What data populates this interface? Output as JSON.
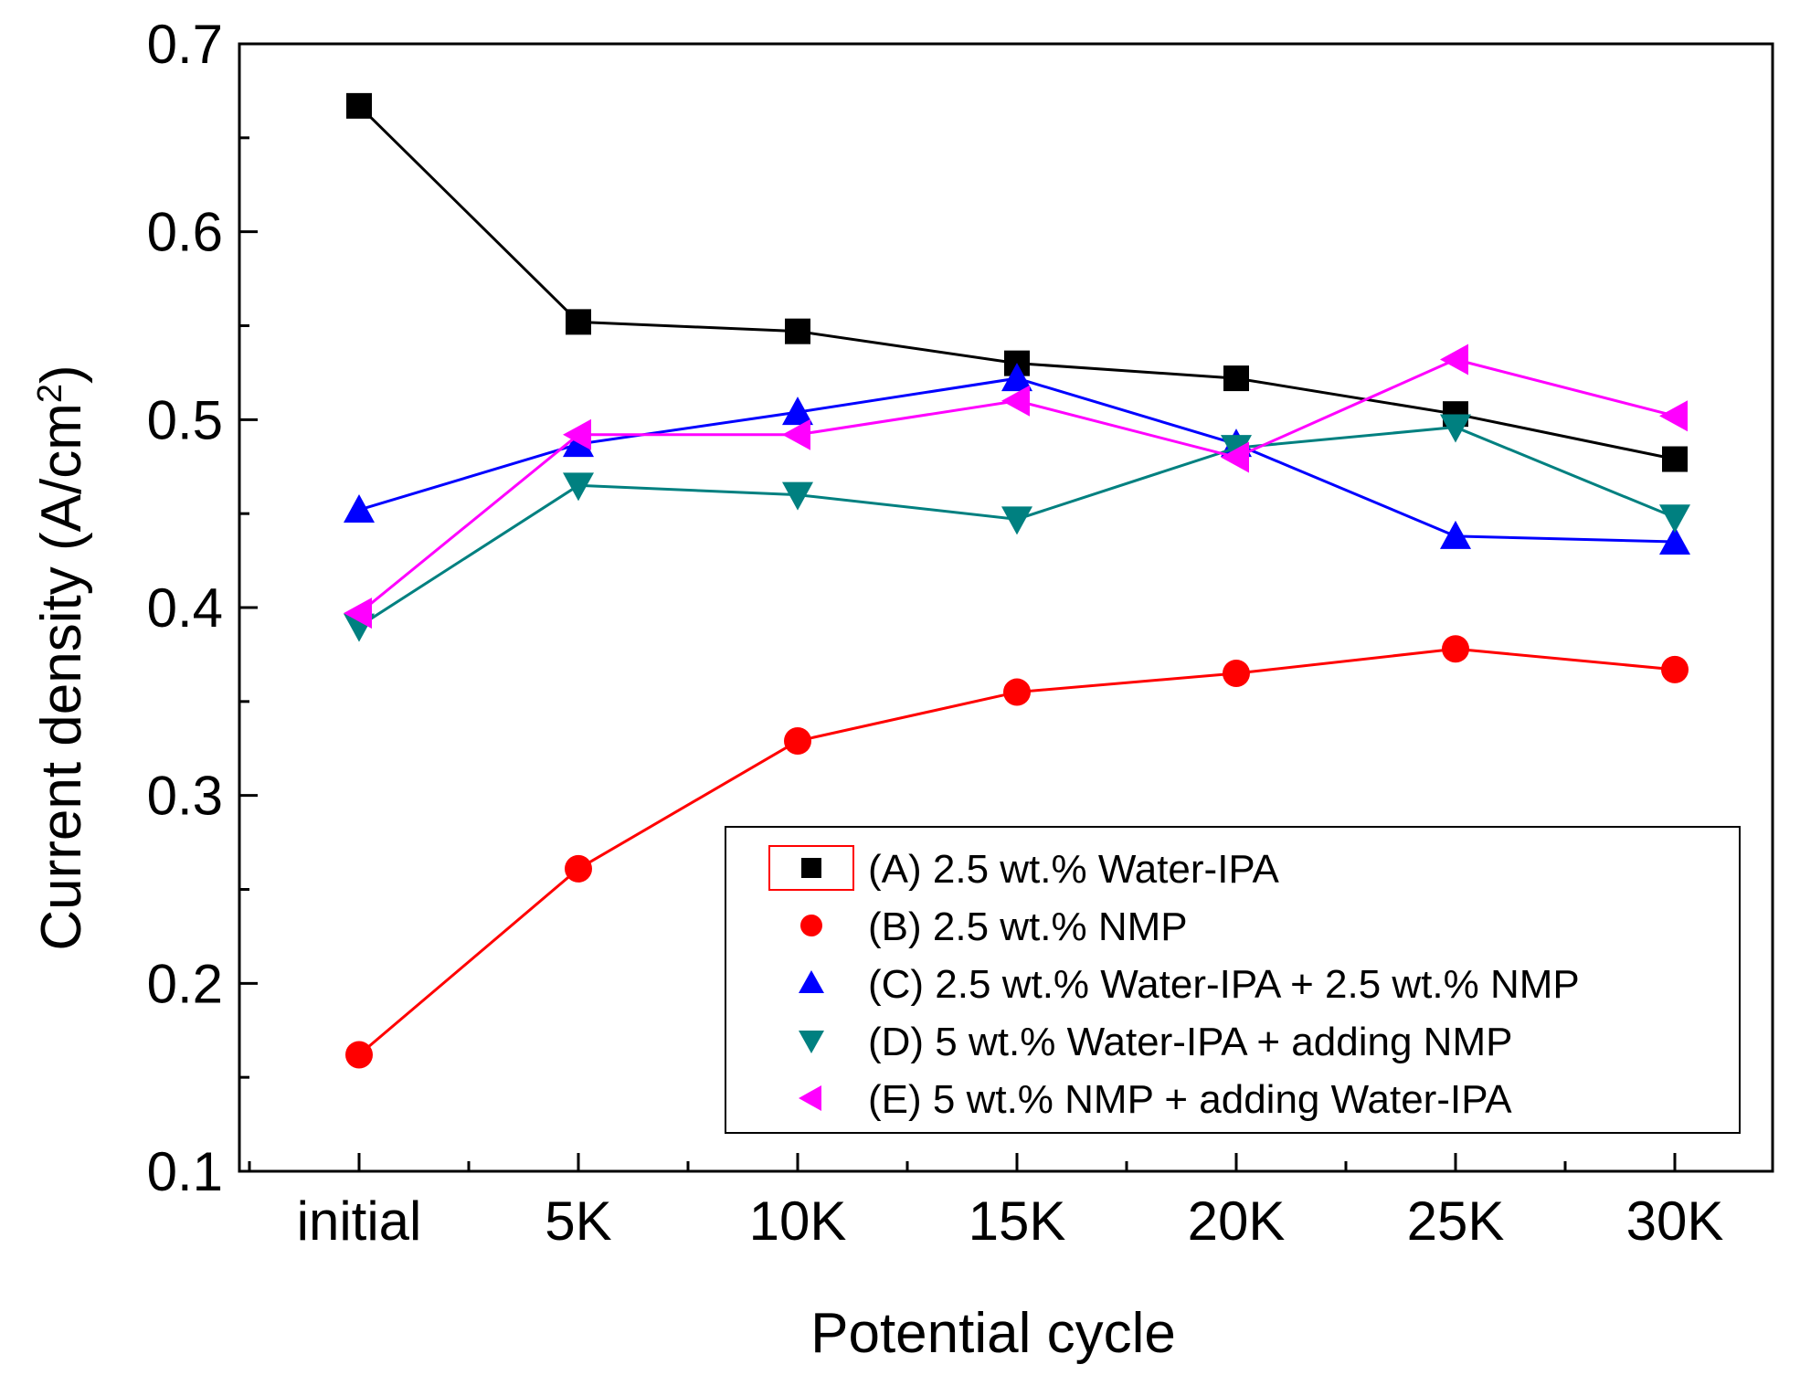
{
  "chart_data": {
    "type": "line",
    "xlabel": "Potential cycle",
    "ylabel": "Current density (A/cm",
    "ylabel_sup": "2",
    "ylabel_end": ")",
    "categories": [
      "initial",
      "5K",
      "10K",
      "15K",
      "20K",
      "25K",
      "30K"
    ],
    "ylim": [
      0.1,
      0.7
    ],
    "yticks": [
      "0.1",
      "0.2",
      "0.3",
      "0.4",
      "0.5",
      "0.6",
      "0.7"
    ],
    "legend_position": "lower-right",
    "series": [
      {
        "name": "(A) 2.5 wt.% Water-IPA",
        "color": "#000000",
        "marker": "square",
        "values": [
          0.667,
          0.552,
          0.547,
          0.53,
          0.522,
          0.503,
          0.479
        ]
      },
      {
        "name": "(B) 2.5 wt.% NMP",
        "color": "#ff0000",
        "marker": "circle",
        "values": [
          0.162,
          0.261,
          0.329,
          0.355,
          0.365,
          0.378,
          0.367
        ]
      },
      {
        "name": "(C) 2.5 wt.% Water-IPA + 2.5 wt.% NMP",
        "color": "#0000ff",
        "marker": "triangle-up",
        "values": [
          0.452,
          0.487,
          0.504,
          0.522,
          0.487,
          0.438,
          0.435
        ]
      },
      {
        "name": "(D) 5 wt.% Water-IPA + adding NMP",
        "color": "#008080",
        "marker": "triangle-down",
        "values": [
          0.39,
          0.465,
          0.46,
          0.447,
          0.485,
          0.496,
          0.448
        ]
      },
      {
        "name": "(E) 5 wt.% NMP + adding Water-IPA",
        "color": "#ff00ff",
        "marker": "triangle-left",
        "values": [
          0.397,
          0.492,
          0.492,
          0.51,
          0.48,
          0.532,
          0.502
        ]
      }
    ]
  }
}
